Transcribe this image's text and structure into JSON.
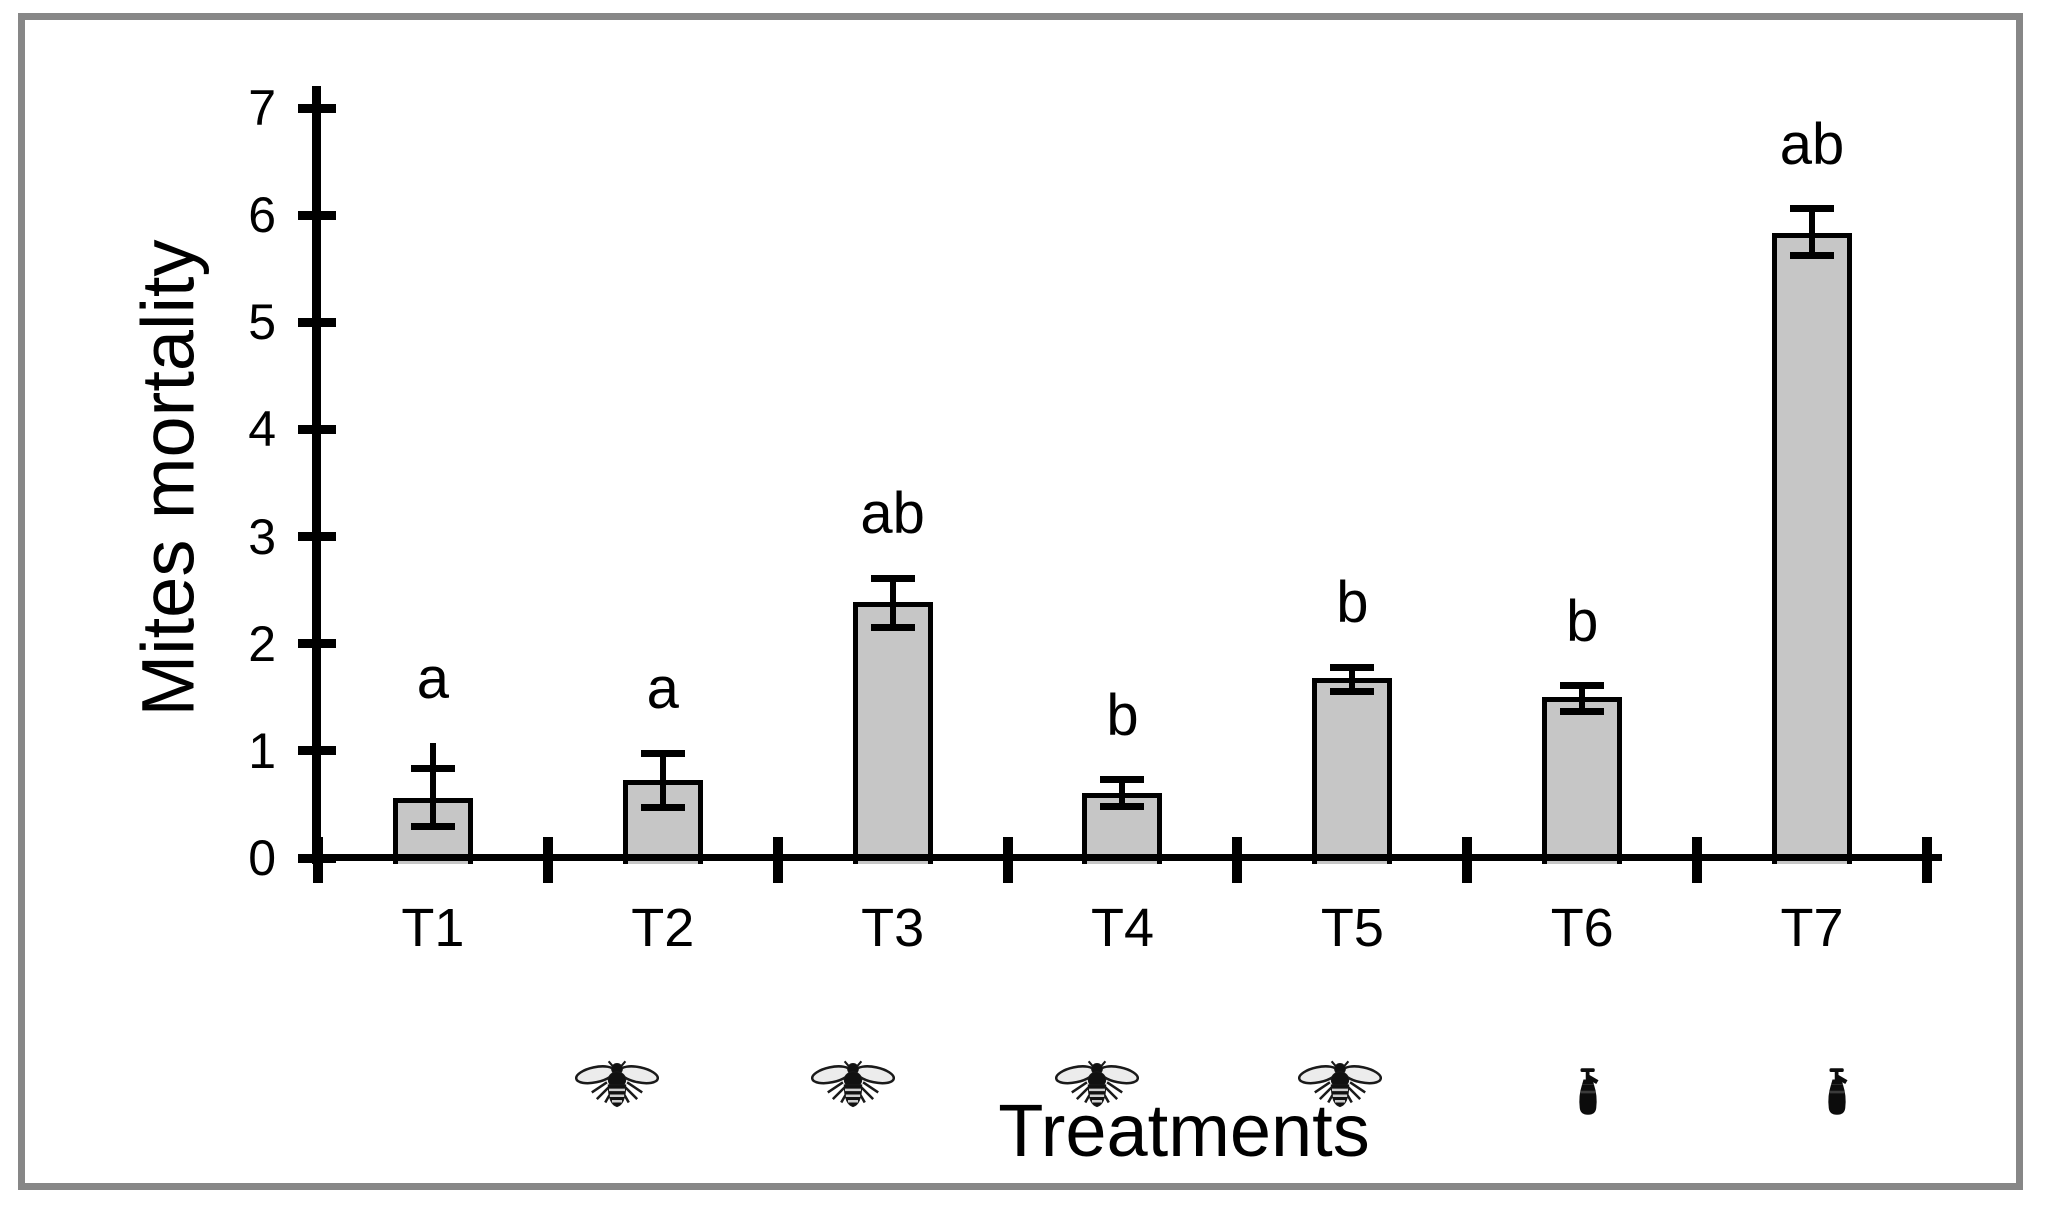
{
  "figure": {
    "background": "#ffffff",
    "frame_color": "#878787"
  },
  "chart_data": {
    "type": "bar",
    "title": "",
    "ylabel": "Mites mortality",
    "xlabel": "Treatments",
    "ylim": [
      0,
      7
    ],
    "yticks": [
      0,
      1,
      2,
      3,
      4,
      5,
      6,
      7
    ],
    "grid": false,
    "legend": null,
    "bar_fill": "#c6c6c6",
    "bar_edge": "#000000",
    "categories": [
      "T1",
      "T2",
      "T3",
      "T4",
      "T5",
      "T6",
      "T7"
    ],
    "values": [
      0.56,
      0.73,
      2.39,
      0.61,
      1.68,
      1.5,
      5.83
    ],
    "error_upper_cap": [
      0.84,
      0.98,
      2.61,
      0.73,
      1.78,
      1.61,
      6.06
    ],
    "error_lower_cap": [
      0.29,
      0.47,
      2.15,
      0.48,
      1.55,
      1.37,
      5.62
    ],
    "whisker_line_top": [
      1.07,
      0.98,
      2.61,
      0.73,
      1.78,
      1.61,
      6.06
    ],
    "sig_letters": [
      "a",
      "a",
      "ab",
      "b",
      "b",
      "b",
      "ab"
    ],
    "icons": [
      null,
      "bee-icon",
      "bee-icon",
      "bee-icon",
      "bee-icon",
      "sprayer-icon",
      "sprayer-icon"
    ]
  }
}
